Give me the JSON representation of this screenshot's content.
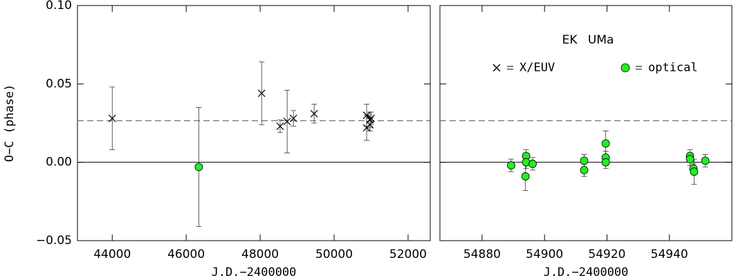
{
  "chart_data": [
    {
      "type": "scatter",
      "xlabel": "J.D.−2400000",
      "ylabel": "O−C (phase)",
      "xlim": [
        43060,
        52600
      ],
      "ylim": [
        -0.05,
        0.1
      ],
      "xticks": [
        44000,
        46000,
        48000,
        50000,
        52000
      ],
      "yticks": [
        {
          "value": -0.05,
          "label": "−0.05"
        },
        {
          "value": 0,
          "label": "0.00"
        },
        {
          "value": 0.05,
          "label": "0.05"
        },
        {
          "value": 0.1,
          "label": "0.10"
        }
      ],
      "hlines": [
        {
          "value": 0,
          "style": "solid"
        },
        {
          "value": 0.0265,
          "style": "dashed"
        }
      ],
      "legend": false,
      "series": [
        {
          "name": "X/EUV",
          "marker": "x",
          "color": "#000000",
          "x": [
            44000,
            48040,
            48540,
            48730,
            48900,
            49460,
            50880,
            50880,
            50970,
            50970,
            51000
          ],
          "values": [
            0.028,
            0.044,
            0.023,
            0.026,
            0.028,
            0.031,
            0.03,
            0.022,
            0.027,
            0.024,
            0.028
          ],
          "errors": [
            0.02,
            0.02,
            0.004,
            0.02,
            0.005,
            0.006,
            0.007,
            0.008,
            0.005,
            0.004,
            0.004
          ]
        },
        {
          "name": "optical",
          "marker": "circle",
          "color": "#22ee22",
          "x": [
            46340
          ],
          "values": [
            -0.003
          ],
          "errors": [
            0.038
          ]
        }
      ]
    },
    {
      "type": "scatter",
      "xlabel": "J.D.−2400000",
      "title": "EK UMa",
      "xlim": [
        54866.5,
        54960
      ],
      "ylim": [
        -0.05,
        0.1
      ],
      "xticks": [
        54880,
        54900,
        54920,
        54940
      ],
      "yticks": [
        -0.05,
        0,
        0.05,
        0.1
      ],
      "hlines": [
        {
          "value": 0,
          "style": "solid"
        },
        {
          "value": 0.0265,
          "style": "dashed"
        }
      ],
      "legend": true,
      "series": [
        {
          "name": "X/EUV",
          "marker": "x",
          "color": "#000000",
          "x": [],
          "values": [],
          "errors": []
        },
        {
          "name": "optical",
          "marker": "circle",
          "color": "#22ee22",
          "x": [
            54889.3,
            54893.9,
            54894.1,
            54894.1,
            54896.2,
            54912.7,
            54912.7,
            54919.6,
            54919.6,
            54919.6,
            54946.6,
            54946.6,
            54947.7,
            54947.9,
            54951.5
          ],
          "values": [
            -0.002,
            -0.009,
            0.004,
            0.0,
            -0.001,
            0.001,
            -0.005,
            0.012,
            0.003,
            0.0,
            0.004,
            0.002,
            -0.004,
            -0.006,
            0.001
          ],
          "errors": [
            0.004,
            0.009,
            0.004,
            0.004,
            0.004,
            0.004,
            0.004,
            0.008,
            0.004,
            0.004,
            0.004,
            0.004,
            0.003,
            0.008,
            0.004
          ]
        }
      ]
    }
  ]
}
